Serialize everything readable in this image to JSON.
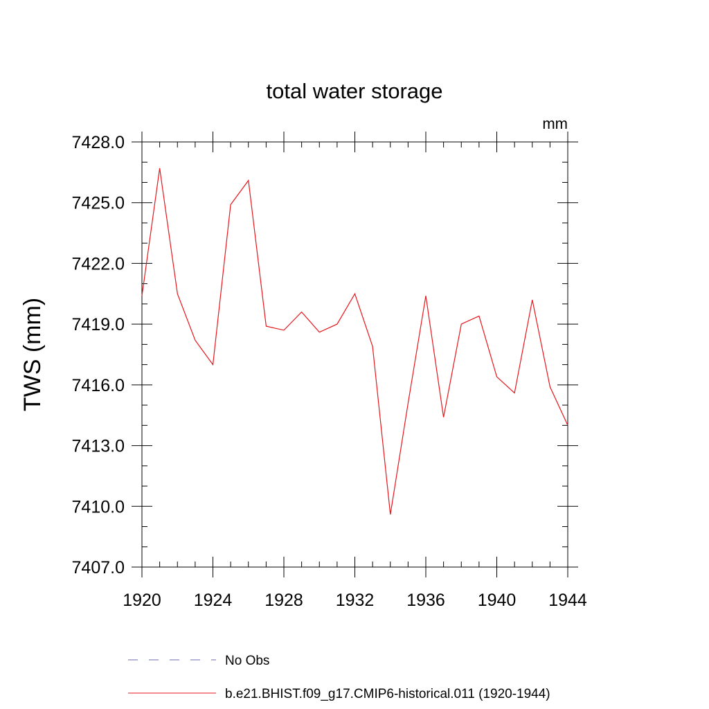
{
  "chart_data": {
    "type": "line",
    "title": "total water storage",
    "units_label": "mm",
    "xlabel": "",
    "ylabel": "TWS  (mm)",
    "xlim": [
      1920,
      1944
    ],
    "ylim": [
      7407.0,
      7428.0
    ],
    "x_ticks": [
      1920,
      1924,
      1928,
      1932,
      1936,
      1940,
      1944
    ],
    "y_ticks": [
      7407.0,
      7410.0,
      7413.0,
      7416.0,
      7419.0,
      7422.0,
      7425.0,
      7428.0
    ],
    "y_tick_labels": [
      "7407.0",
      "7410.0",
      "7413.0",
      "7416.0",
      "7419.0",
      "7422.0",
      "7425.0",
      "7428.0"
    ],
    "x_minor_step": 1,
    "y_minor_step": 1,
    "grid": false,
    "series": [
      {
        "name": "b.e21.BHIST.f09_g17.CMIP6-historical.011 (1920-1944)",
        "color": "#e8151b",
        "dash": "solid",
        "x": [
          1920,
          1921,
          1922,
          1923,
          1924,
          1925,
          1926,
          1927,
          1928,
          1929,
          1930,
          1931,
          1932,
          1933,
          1934,
          1935,
          1936,
          1937,
          1938,
          1939,
          1940,
          1941,
          1942,
          1943,
          1944
        ],
        "y": [
          7420.4,
          7426.7,
          7420.5,
          7418.2,
          7417.0,
          7424.9,
          7426.1,
          7418.9,
          7418.7,
          7419.6,
          7418.6,
          7419.0,
          7420.5,
          7417.9,
          7409.6,
          7415.1,
          7420.4,
          7414.4,
          7419.0,
          7419.4,
          7416.4,
          7415.6,
          7420.2,
          7415.9,
          7414.0
        ]
      }
    ],
    "legend": {
      "placement": "bottom",
      "entries": [
        {
          "label": "No Obs",
          "color": "#6a6ab0",
          "dash": "dashed"
        },
        {
          "label": "b.e21.BHIST.f09_g17.CMIP6-historical.011 (1920-1944)",
          "color": "#e8151b",
          "dash": "solid"
        }
      ]
    }
  }
}
